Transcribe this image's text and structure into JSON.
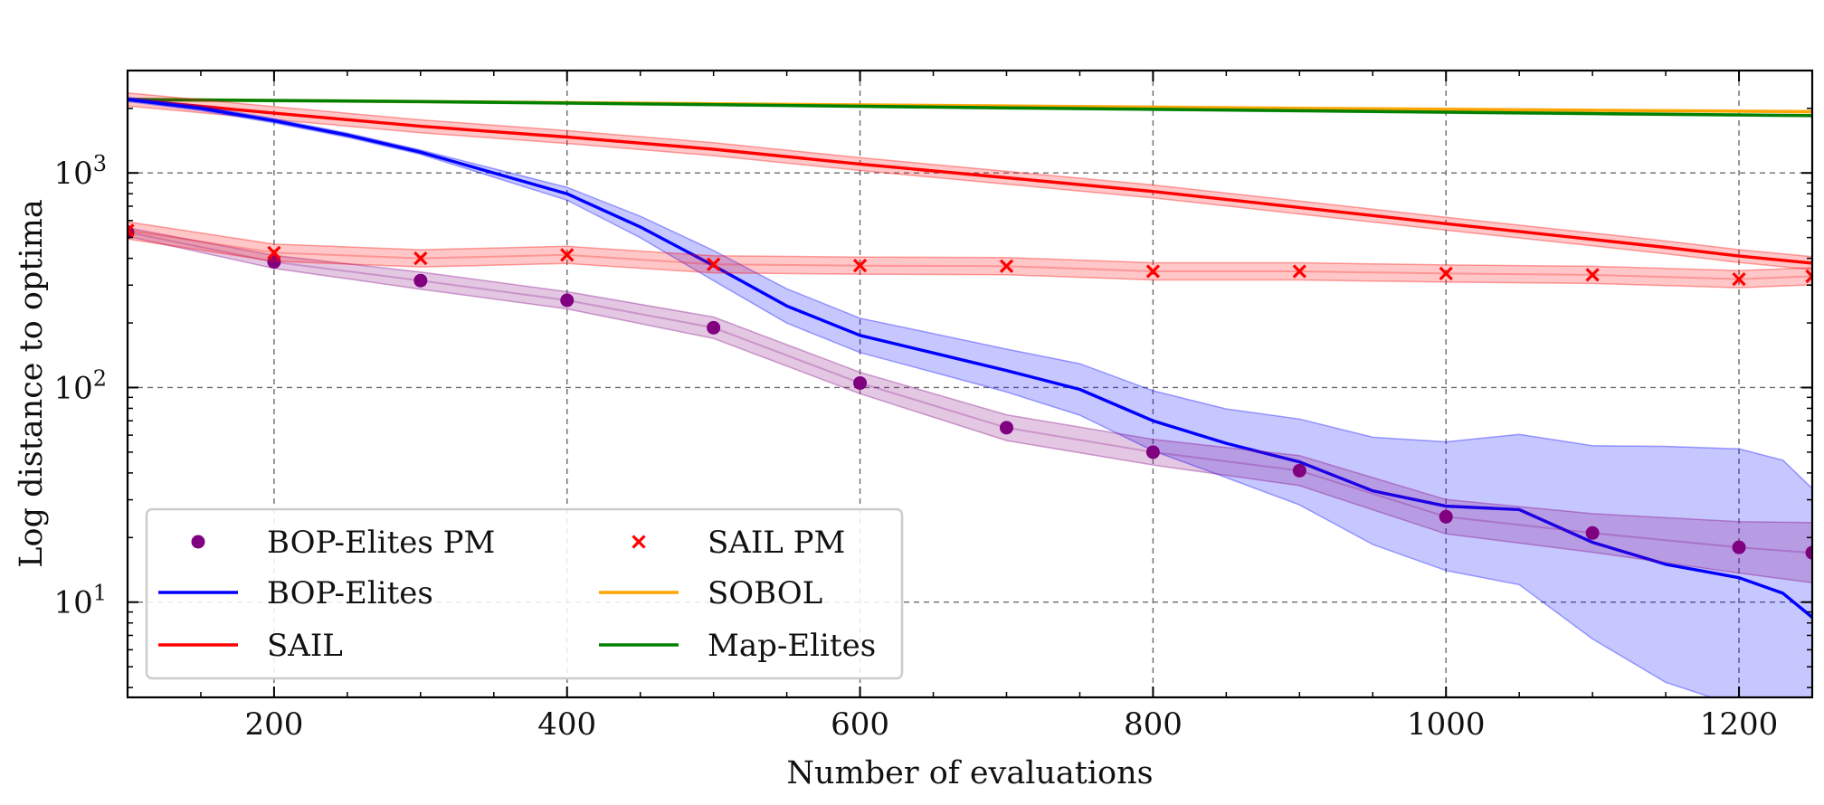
{
  "chart_data": {
    "type": "line",
    "title": "",
    "xlabel": "Number of evaluations",
    "ylabel": "Log distance to optima",
    "xlim": [
      100,
      1250
    ],
    "ylim": [
      3.6,
      3000
    ],
    "yscale": "log",
    "grid": true,
    "legend_position": "bottom-left",
    "x_ticks": [
      200,
      400,
      600,
      800,
      1000,
      1200
    ],
    "x_tick_labels": [
      "200",
      "400",
      "600",
      "800",
      "1000",
      "1200"
    ],
    "y_ticks": [
      10,
      100,
      1000
    ],
    "y_tick_labels": [
      {
        "base": "10",
        "exp": "1"
      },
      {
        "base": "10",
        "exp": "2"
      },
      {
        "base": "10",
        "exp": "3"
      }
    ],
    "series": [
      {
        "name": "SOBOL",
        "style": "line",
        "color": "#ffa500",
        "x": [
          100,
          300,
          500,
          700,
          900,
          1100,
          1250
        ],
        "y": [
          2200,
          2150,
          2100,
          2050,
          2000,
          1960,
          1930
        ],
        "band": 0.005
      },
      {
        "name": "Map-Elites",
        "style": "line",
        "color": "#008000",
        "x": [
          100,
          300,
          500,
          700,
          900,
          1100,
          1250
        ],
        "y": [
          2200,
          2150,
          2080,
          2010,
          1950,
          1890,
          1850
        ],
        "band": 0.005
      },
      {
        "name": "SAIL",
        "style": "line",
        "color": "#ff0000",
        "x": [
          100,
          200,
          300,
          400,
          500,
          600,
          700,
          800,
          900,
          1000,
          1100,
          1150,
          1200,
          1250
        ],
        "y": [
          2200,
          1900,
          1650,
          1470,
          1290,
          1100,
          950,
          820,
          690,
          580,
          490,
          450,
          410,
          380
        ],
        "band": 0.03
      },
      {
        "name": "BOP-Elites",
        "style": "line",
        "color": "#0000ff",
        "x": [
          100,
          150,
          200,
          250,
          300,
          350,
          400,
          450,
          500,
          550,
          600,
          650,
          700,
          750,
          800,
          850,
          900,
          950,
          1000,
          1050,
          1100,
          1150,
          1200,
          1230,
          1250
        ],
        "y": [
          2200,
          2000,
          1750,
          1500,
          1250,
          1000,
          800,
          560,
          370,
          240,
          175,
          145,
          120,
          98,
          70,
          55,
          45,
          33,
          28,
          27,
          19,
          15,
          13,
          11,
          8.5
        ],
        "band": [
          0.01,
          0.01,
          0.01,
          0.01,
          0.01,
          0.02,
          0.03,
          0.05,
          0.07,
          0.08,
          0.08,
          0.09,
          0.1,
          0.12,
          0.14,
          0.16,
          0.2,
          0.25,
          0.3,
          0.35,
          0.45,
          0.55,
          0.6,
          0.62,
          0.6
        ]
      },
      {
        "name": "BOP-Elites PM",
        "style": "dots",
        "color": "#800080",
        "x": [
          100,
          200,
          300,
          400,
          500,
          600,
          700,
          800,
          900,
          1000,
          1100,
          1200,
          1250
        ],
        "y": [
          530,
          385,
          315,
          255,
          190,
          105,
          65,
          50,
          41,
          25,
          21,
          18,
          17
        ],
        "band": [
          0.02,
          0.03,
          0.04,
          0.04,
          0.05,
          0.05,
          0.06,
          0.06,
          0.07,
          0.08,
          0.09,
          0.12,
          0.14
        ]
      },
      {
        "name": "SAIL PM",
        "style": "crosses",
        "color": "#ff0000",
        "x": [
          100,
          200,
          300,
          400,
          500,
          600,
          700,
          800,
          900,
          1000,
          1100,
          1200,
          1250
        ],
        "y": [
          540,
          425,
          400,
          415,
          375,
          370,
          368,
          348,
          348,
          340,
          335,
          320,
          330
        ],
        "band": 0.04
      }
    ],
    "legend": [
      {
        "name": "BOP-Elites PM",
        "style": "dots",
        "color": "#800080"
      },
      {
        "name": "SAIL PM",
        "style": "crosses",
        "color": "#ff0000"
      },
      {
        "name": "BOP-Elites",
        "style": "line",
        "color": "#0000ff"
      },
      {
        "name": "SOBOL",
        "style": "line",
        "color": "#ffa500"
      },
      {
        "name": "SAIL",
        "style": "line",
        "color": "#ff0000"
      },
      {
        "name": "Map-Elites",
        "style": "line",
        "color": "#008000"
      }
    ]
  }
}
